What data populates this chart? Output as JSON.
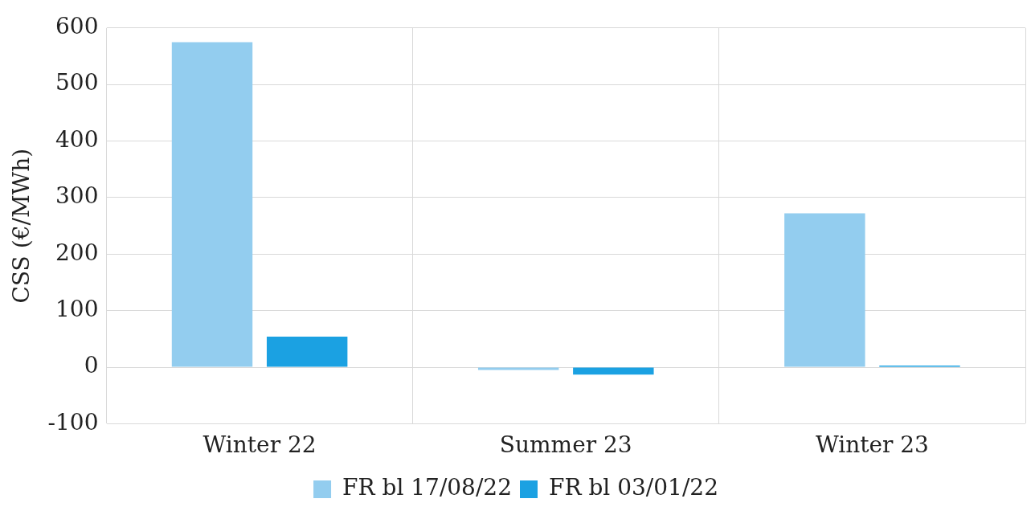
{
  "chart_data": {
    "type": "bar",
    "ylabel": "CSS (€/MWh)",
    "categories": [
      "Winter 22",
      "Summer 23",
      "Winter 23"
    ],
    "series": [
      {
        "name": "FR bl 17/08/22",
        "color": "#93cdef",
        "values": [
          575,
          -5,
          272
        ]
      },
      {
        "name": "FR bl 03/01/22",
        "color": "#1ba1e2",
        "values": [
          54,
          -13,
          3
        ]
      }
    ],
    "ylim": [
      -100,
      600
    ],
    "yticks": [
      -100,
      0,
      100,
      200,
      300,
      400,
      500,
      600
    ],
    "grid": true,
    "legend": "bottom"
  }
}
